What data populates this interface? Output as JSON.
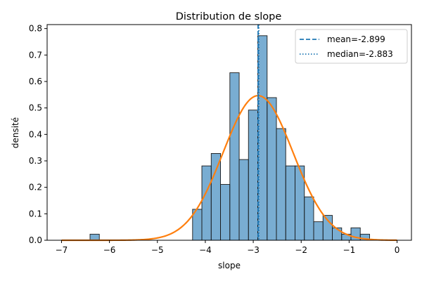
{
  "chart_data": {
    "type": "bar",
    "title": "Distribution de slope",
    "xlabel": "slope",
    "ylabel": "densité",
    "xlim": [
      -7.3,
      0.3
    ],
    "ylim": [
      0,
      0.815
    ],
    "xticks": [
      -7,
      -6,
      -5,
      -4,
      -3,
      -2,
      -1,
      0
    ],
    "xtick_labels": [
      "−7",
      "−6",
      "−5",
      "−4",
      "−3",
      "−2",
      "−1",
      "0"
    ],
    "yticks": [
      0.0,
      0.1,
      0.2,
      0.3,
      0.4,
      0.5,
      0.6,
      0.7,
      0.8
    ],
    "ytick_labels": [
      "0.0",
      "0.1",
      "0.2",
      "0.3",
      "0.4",
      "0.5",
      "0.6",
      "0.7",
      "0.8"
    ],
    "grid": false,
    "legend_position": "top-right",
    "histogram": {
      "bin_width": 0.1943,
      "bins": [
        {
          "start": -6.405,
          "value": 0.023
        },
        {
          "start": -4.266,
          "value": 0.117
        },
        {
          "start": -4.072,
          "value": 0.281
        },
        {
          "start": -3.877,
          "value": 0.328
        },
        {
          "start": -3.683,
          "value": 0.211
        },
        {
          "start": -3.488,
          "value": 0.633
        },
        {
          "start": -3.294,
          "value": 0.305
        },
        {
          "start": -3.1,
          "value": 0.492
        },
        {
          "start": -2.905,
          "value": 0.773
        },
        {
          "start": -2.711,
          "value": 0.539
        },
        {
          "start": -2.517,
          "value": 0.422
        },
        {
          "start": -2.322,
          "value": 0.281
        },
        {
          "start": -2.128,
          "value": 0.281
        },
        {
          "start": -1.934,
          "value": 0.164
        },
        {
          "start": -1.739,
          "value": 0.07
        },
        {
          "start": -1.545,
          "value": 0.094
        },
        {
          "start": -1.35,
          "value": 0.047
        },
        {
          "start": -1.156,
          "value": 0.023
        },
        {
          "start": -0.962,
          "value": 0.047
        },
        {
          "start": -0.767,
          "value": 0.023
        }
      ],
      "color": "#1f77b4",
      "alpha": 0.6
    },
    "normal_fit": {
      "mu": -2.899,
      "sigma": 0.73,
      "x_range": [
        -7,
        0
      ],
      "color": "#ff7f0e"
    },
    "series": [
      {
        "name": "mean=-2.899",
        "value": -2.899,
        "style": "dashed",
        "color": "#1f77b4"
      },
      {
        "name": "median=-2.883",
        "value": -2.883,
        "style": "dotted",
        "color": "#1f77b4"
      }
    ]
  }
}
